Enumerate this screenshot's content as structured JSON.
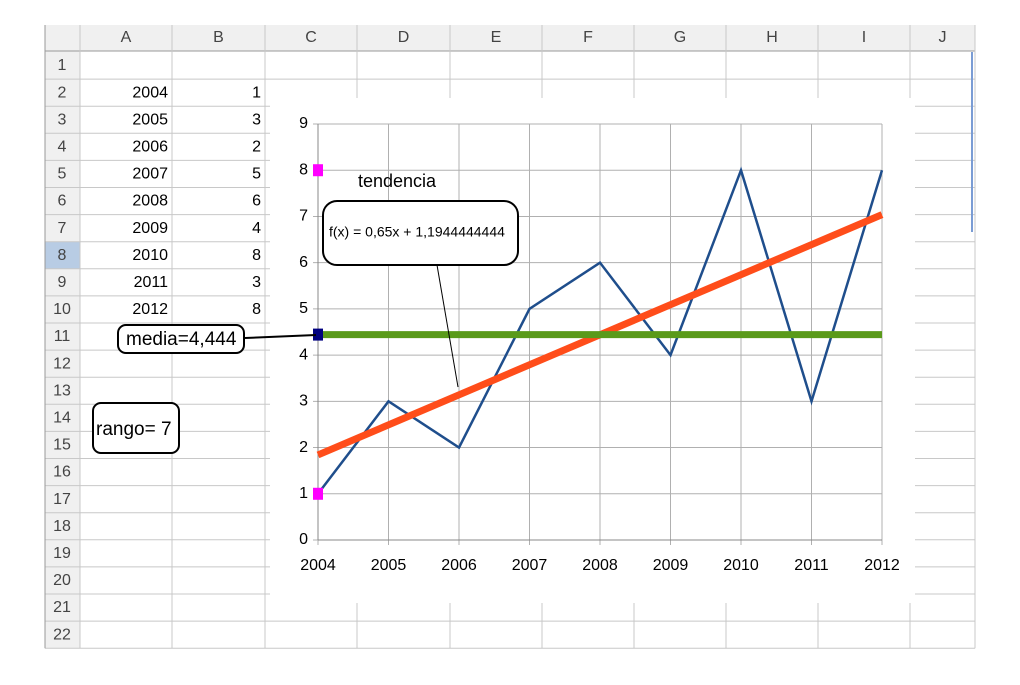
{
  "spreadsheet": {
    "columns": [
      "A",
      "B",
      "C",
      "D",
      "E",
      "F",
      "G",
      "H",
      "I",
      "J"
    ],
    "rows": [
      1,
      2,
      3,
      4,
      5,
      6,
      7,
      8,
      9,
      10,
      11,
      12,
      13,
      14,
      15,
      16,
      17,
      18,
      19,
      20,
      21,
      22
    ],
    "cells": [
      [
        2004,
        1
      ],
      [
        2005,
        3
      ],
      [
        2006,
        2
      ],
      [
        2007,
        5
      ],
      [
        2008,
        6
      ],
      [
        2009,
        4
      ],
      [
        2010,
        8
      ],
      [
        2011,
        3
      ],
      [
        2012,
        8
      ]
    ],
    "textboxes": [
      "media=4,444",
      "rango= 7"
    ]
  },
  "chart_data": {
    "type": "line",
    "x": [
      2004,
      2005,
      2006,
      2007,
      2008,
      2009,
      2010,
      2011,
      2012
    ],
    "xlim": [
      2004,
      2012
    ],
    "xticks": [
      2004,
      2005,
      2006,
      2007,
      2008,
      2009,
      2010,
      2011,
      2012
    ],
    "ylim": [
      0,
      9
    ],
    "yticks": [
      0,
      1,
      2,
      3,
      4,
      5,
      6,
      7,
      8,
      9
    ],
    "grid": true,
    "series": [
      {
        "color": "#1f4e8c",
        "mode": "line",
        "values": [
          1,
          3,
          2,
          5,
          6,
          4,
          8,
          3,
          8
        ]
      },
      {
        "color": "#ff4d1a",
        "mode": "line",
        "x": [
          2004,
          2012
        ],
        "values": [
          1.84,
          7.04
        ]
      },
      {
        "color": "#5a9a1a",
        "mode": "line",
        "x": [
          2004,
          2012
        ],
        "values": [
          4.444,
          4.444
        ]
      },
      {
        "color": "#ff00ff",
        "mode": "markers",
        "x": [
          2004,
          2004
        ],
        "values": [
          8,
          1
        ]
      },
      {
        "color": "#00007f",
        "mode": "markers",
        "x": [
          2004
        ],
        "values": [
          4.444
        ]
      }
    ],
    "annotations": [
      "tendencia",
      "f(x) = 0,65x + 1,1944444444"
    ]
  }
}
